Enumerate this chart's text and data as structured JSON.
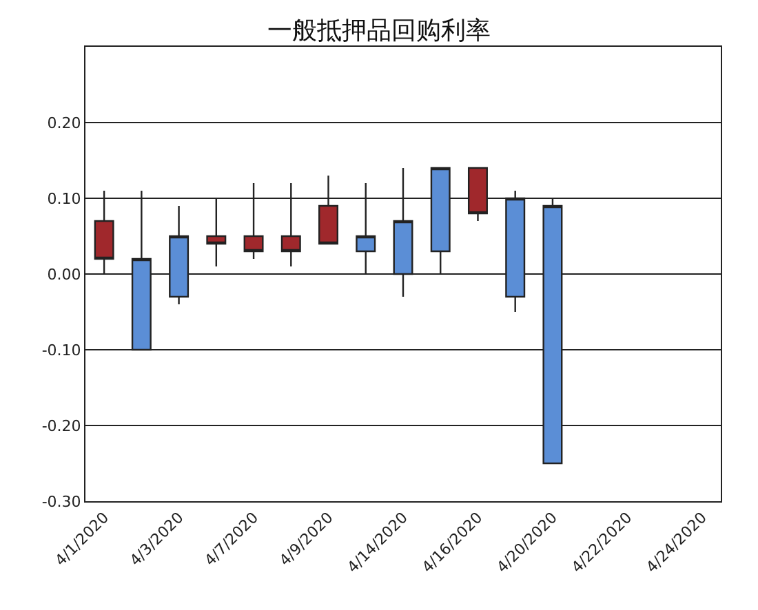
{
  "chart_data": {
    "type": "candlestick",
    "title": "一般抵押品回购利率",
    "categories": [
      "4/1/2020",
      null,
      "4/3/2020",
      null,
      "4/7/2020",
      null,
      "4/9/2020",
      null,
      "4/14/2020",
      null,
      "4/16/2020",
      null,
      "4/20/2020",
      null,
      "4/22/2020",
      null,
      "4/24/2020"
    ],
    "ohlc": [
      [
        0.07,
        0.11,
        0.0,
        0.02
      ],
      [
        -0.1,
        0.11,
        -0.1,
        0.02
      ],
      [
        -0.03,
        0.09,
        -0.04,
        0.05
      ],
      [
        0.05,
        0.1,
        0.01,
        0.04
      ],
      [
        0.05,
        0.12,
        0.02,
        0.03
      ],
      [
        0.05,
        0.12,
        0.01,
        0.03
      ],
      [
        0.09,
        0.13,
        0.04,
        0.04
      ],
      [
        0.03,
        0.12,
        0.0,
        0.05
      ],
      [
        0.0,
        0.14,
        -0.03,
        0.07
      ],
      [
        0.03,
        0.14,
        0.0,
        0.14
      ],
      [
        0.14,
        0.14,
        0.07,
        0.08
      ],
      [
        -0.03,
        0.11,
        -0.05,
        0.1
      ],
      [
        -0.25,
        0.1,
        -0.25,
        0.09
      ],
      null,
      null,
      null,
      null
    ],
    "colors": [
      "#a0282c",
      "#5b8ed6",
      "#5b8ed6",
      "#a0282c",
      "#a0282c",
      "#a0282c",
      "#a0282c",
      "#5b8ed6",
      "#5b8ed6",
      "#5b8ed6",
      "#a0282c",
      "#5b8ed6",
      "#5b8ed6",
      null,
      null,
      null,
      null
    ],
    "ylim": [
      -0.3,
      0.3
    ],
    "yticks": [
      {
        "value": -0.3,
        "label": "-0.30"
      },
      {
        "value": -0.2,
        "label": "-0.20"
      },
      {
        "value": -0.1,
        "label": "-0.10"
      },
      {
        "value": 0.0,
        "label": "0.00"
      },
      {
        "value": 0.1,
        "label": "0.10"
      },
      {
        "value": 0.2,
        "label": "0.20"
      },
      {
        "value": 0.3,
        "label": null
      }
    ],
    "grid": "y"
  }
}
